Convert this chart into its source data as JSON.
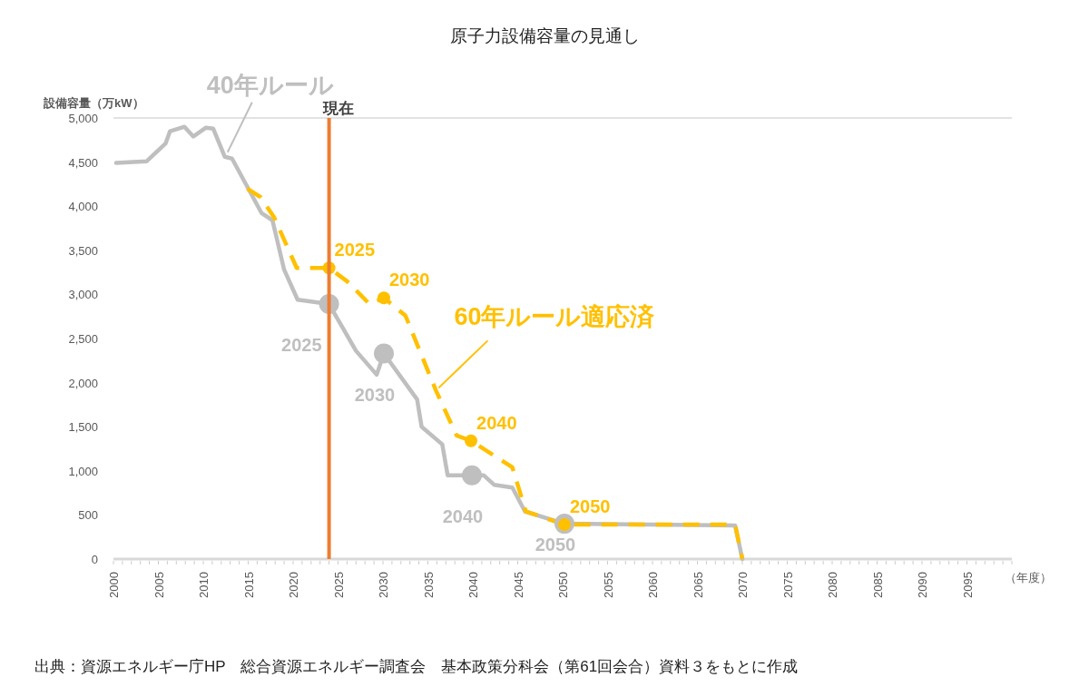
{
  "chart_data": {
    "type": "line",
    "title": "原子力設備容量の見通し",
    "ylabel": "設備容量（万kW）",
    "xlabel": "（年度）",
    "xlim": [
      2000,
      2100
    ],
    "ylim": [
      0,
      5000
    ],
    "xticks": [
      2000,
      2005,
      2010,
      2015,
      2020,
      2025,
      2030,
      2035,
      2040,
      2045,
      2050,
      2055,
      2060,
      2065,
      2070,
      2075,
      2080,
      2085,
      2090,
      2095
    ],
    "yticks": [
      0,
      {
        "value": 500,
        "label": "500"
      },
      {
        "value": 1000,
        "label": "1,000"
      },
      {
        "value": 1500,
        "label": "1,500"
      },
      {
        "value": 2000,
        "label": "2,000"
      },
      {
        "value": 2500,
        "label": "2,500"
      },
      {
        "value": 3000,
        "label": "3,000"
      },
      {
        "value": 3500,
        "label": "3,500"
      },
      {
        "value": 4000,
        "label": "4,000"
      },
      {
        "value": 4500,
        "label": "4,500"
      },
      {
        "value": 5000,
        "label": "5,000"
      }
    ],
    "grid": false,
    "legend": false,
    "series": [
      {
        "name": "40年ルール",
        "type": "line",
        "color": "#bfbfbf",
        "line_style": "solid",
        "marker": "none",
        "x": [
          2000.3,
          2003.7,
          2005.8,
          2006.3,
          2007.9,
          2008.9,
          2010.3,
          2011.1,
          2012.4,
          2013.2,
          2016.5,
          2017.7,
          2019.0,
          2020.5,
          2024,
          2027.0,
          2029.3,
          2030.1,
          2033.8,
          2034.3,
          2036.6,
          2037.2,
          2039.9,
          2041.2,
          2042.4,
          2044.4,
          2045.8,
          2050.2,
          2069.2,
          2070
        ],
        "values": [
          4490,
          4510,
          4710,
          4850,
          4900,
          4790,
          4890,
          4880,
          4560,
          4540,
          3920,
          3840,
          3280,
          2940,
          2890,
          2360,
          2090,
          2330,
          1810,
          1500,
          1300,
          950,
          950,
          950,
          840,
          810,
          540,
          400,
          380,
          0
        ]
      },
      {
        "name": "60年ルール適応済",
        "type": "line",
        "color": "#ffc000",
        "line_style": "dashed",
        "marker": "none",
        "x": [
          2014.9,
          2016.4,
          2017.9,
          2020.4,
          2024,
          2026.0,
          2028.5,
          2030.1,
          2032.5,
          2035.9,
          2038.2,
          2039.8,
          2044.4,
          2045.9,
          2050.2,
          2069.2,
          2070
        ],
        "values": [
          4200,
          4100,
          3870,
          3300,
          3300,
          3150,
          2890,
          2960,
          2760,
          1910,
          1400,
          1340,
          1040,
          540,
          390,
          390,
          0
        ]
      },
      {
        "type": "scatter",
        "color": "#bfbfbf",
        "marker": "circle",
        "x": [
          2024,
          2030.1,
          2039.9,
          2050.2
        ],
        "values": [
          2890,
          2330,
          950,
          400
        ]
      },
      {
        "type": "scatter",
        "color": "#ffc000",
        "marker": "circle",
        "x": [
          2024,
          2030.1,
          2039.8,
          2050.2
        ],
        "values": [
          3300,
          2960,
          1340,
          390
        ]
      }
    ],
    "ref_lines": [
      {
        "axis": "x",
        "value": 2024,
        "label": "現在",
        "color": "#ed7d31"
      },
      {
        "axis": "y",
        "value": 5000,
        "color": "#d9d9d9"
      }
    ],
    "annotations": [
      {
        "text": "2025",
        "x": 2024,
        "y": 2890
      },
      {
        "text": "2030",
        "x": 2030.1,
        "y": 2330
      },
      {
        "text": "2040",
        "x": 2039.9,
        "y": 950
      },
      {
        "text": "2050",
        "x": 2050.2,
        "y": 400
      },
      {
        "text": "2025",
        "x": 2024,
        "y": 3300
      },
      {
        "text": "2030",
        "x": 2030.1,
        "y": 2960
      },
      {
        "text": "2040",
        "x": 2039.8,
        "y": 1340
      },
      {
        "text": "2050",
        "x": 2050.2,
        "y": 390
      },
      "出典：資源エネルギー庁HP　総合資源エネルギー調査会　基本政策分科会（第61回会合）資料３をもとに作成"
    ]
  }
}
